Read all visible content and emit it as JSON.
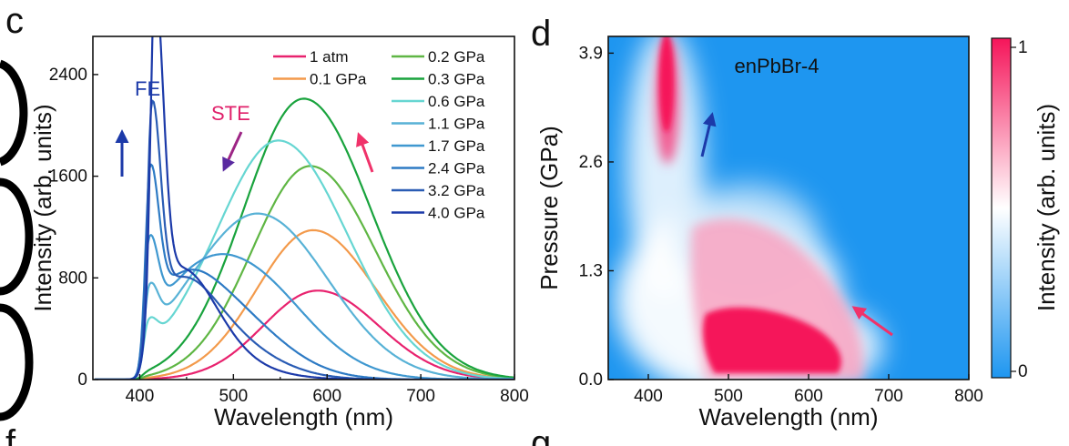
{
  "panels": {
    "c_letter": "c",
    "d_letter": "d",
    "f_letter": "f",
    "g_letter": "g"
  },
  "colors": {
    "map_low": "#1e96f0",
    "map_mid": "#ffffff",
    "map_high": "#f5155a",
    "fe_arrow": "#1c3aa9",
    "ste_arrow_start": "#e0206a",
    "ste_arrow_end": "#5a2aa0"
  },
  "chart_data": [
    {
      "type": "line",
      "panel": "c",
      "xlabel": "Wavelength (nm)",
      "ylabel": "Intensity (arb. units)",
      "xlim": [
        350,
        800
      ],
      "ylim": [
        0,
        2700
      ],
      "xticks": [
        400,
        500,
        600,
        700,
        800
      ],
      "yticks": [
        0,
        800,
        1600,
        2400
      ],
      "legend_position": "top-right",
      "annotations": [
        {
          "text": "FE",
          "color": "#1c3aa9"
        },
        {
          "text": "STE",
          "color": "#e0206a"
        }
      ],
      "series": [
        {
          "name": "1 atm",
          "color": "#e8226e",
          "fe_peak_nm": 410,
          "fe_height": 0,
          "ste_peak_nm": 590,
          "ste_height": 700,
          "ste_width": 58
        },
        {
          "name": "0.1 GPa",
          "color": "#f39a4b",
          "fe_peak_nm": 410,
          "fe_height": 0,
          "ste_peak_nm": 585,
          "ste_height": 1175,
          "ste_width": 60
        },
        {
          "name": "0.2 GPa",
          "color": "#5fb644",
          "fe_peak_nm": 410,
          "fe_height": 0,
          "ste_peak_nm": 582,
          "ste_height": 1680,
          "ste_width": 62
        },
        {
          "name": "0.3 GPa",
          "color": "#19a33d",
          "fe_peak_nm": 410,
          "fe_height": 0,
          "ste_peak_nm": 575,
          "ste_height": 2210,
          "ste_width": 64
        },
        {
          "name": "0.6 GPa",
          "color": "#66d6d2",
          "fe_peak_nm": 409,
          "fe_height": 240,
          "ste_peak_nm": 548,
          "ste_height": 1880,
          "ste_width": 66
        },
        {
          "name": "1.1 GPa",
          "color": "#58b2d6",
          "fe_peak_nm": 410,
          "fe_height": 420,
          "ste_peak_nm": 527,
          "ste_height": 1300,
          "ste_width": 66
        },
        {
          "name": "1.7 GPa",
          "color": "#3f98d0",
          "fe_peak_nm": 410,
          "fe_height": 700,
          "ste_peak_nm": 500,
          "ste_height": 930,
          "ste_width": 62
        },
        {
          "name": "2.4 GPa",
          "color": "#2d7ac4",
          "fe_peak_nm": 411,
          "fe_height": 1200,
          "ste_peak_nm": 478,
          "ste_height": 620,
          "ste_width": 55
        },
        {
          "name": "3.2 GPa",
          "color": "#2a5cb4",
          "fe_peak_nm": 413,
          "fe_height": 1700,
          "ste_peak_nm": 470,
          "ste_height": 380,
          "ste_width": 52
        },
        {
          "name": "4.0 GPa",
          "color": "#1c3aa9",
          "fe_peak_nm": 416,
          "fe_height": 2550,
          "ste_peak_nm": 465,
          "ste_height": 180,
          "ste_width": 50
        }
      ]
    },
    {
      "type": "heatmap",
      "panel": "d",
      "title": "enPbBr-4",
      "xlabel": "Wavelength (nm)",
      "ylabel": "Pressure (GPa)",
      "xlim": [
        350,
        800
      ],
      "ylim": [
        0,
        4.1
      ],
      "xticks": [
        400,
        500,
        600,
        700,
        800
      ],
      "yticks": [
        "0.0",
        "1.3",
        "2.6",
        "3.9"
      ],
      "colorbar": {
        "label": "Intensity (arb. units)",
        "max_label": "1",
        "min_label": "0"
      },
      "features": [
        {
          "region": "FE",
          "wavelength_nm": 420,
          "pressure_range_gpa": [
            1.7,
            4.1
          ]
        },
        {
          "region": "STE",
          "wavelength_nm": 565,
          "pressure_range_gpa": [
            0.0,
            1.9
          ]
        }
      ]
    }
  ]
}
